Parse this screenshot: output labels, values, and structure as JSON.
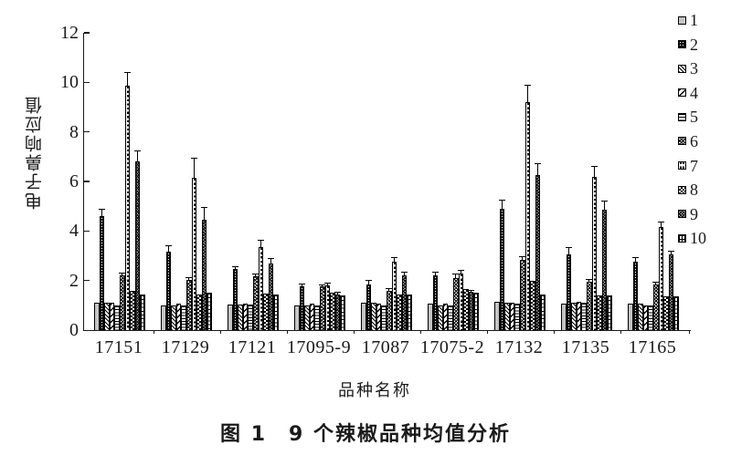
{
  "figure": {
    "caption": "图 1　9 个辣椒品种均值分析"
  },
  "colors": {
    "background": "#ffffff",
    "axis": "#1a1a1a",
    "text": "#1a1a1a",
    "bar_outline": "#000000",
    "light_gray_fill": "#c4c4c4"
  },
  "chart_data": {
    "type": "bar",
    "title": "",
    "xlabel": "品种名称",
    "ylabel": "电子鼻响应值",
    "ylim": [
      0,
      12
    ],
    "yticks": [
      0,
      2,
      4,
      6,
      8,
      10,
      12
    ],
    "grid": false,
    "legend_position": "right",
    "error_bars": true,
    "categories": [
      "17151",
      "17129",
      "17121",
      "17095-9",
      "17087",
      "17075-2",
      "17132",
      "17135",
      "17165"
    ],
    "series": [
      {
        "name": "1",
        "pattern": "light-gray",
        "values": [
          1.1,
          1.0,
          1.02,
          1.0,
          1.1,
          1.05,
          1.15,
          1.05,
          1.05
        ],
        "errors": [
          0,
          0,
          0,
          0,
          0,
          0,
          0,
          0,
          0
        ]
      },
      {
        "name": "2",
        "pattern": "black-fine-dots",
        "values": [
          4.6,
          3.15,
          2.45,
          1.75,
          1.85,
          2.2,
          4.9,
          3.05,
          2.75
        ],
        "errors": [
          0.26,
          0.24,
          0.1,
          0.08,
          0.13,
          0.12,
          0.33,
          0.25,
          0.15
        ]
      },
      {
        "name": "3",
        "pattern": "diagonal-hatch-fine",
        "values": [
          1.1,
          1.0,
          1.04,
          1.0,
          1.1,
          1.0,
          1.1,
          1.1,
          1.08
        ],
        "errors": [
          0,
          0,
          0,
          0,
          0,
          0,
          0,
          0,
          0
        ]
      },
      {
        "name": "4",
        "pattern": "diagonal-hatch-bold",
        "values": [
          1.1,
          1.08,
          1.08,
          1.05,
          1.08,
          1.05,
          1.1,
          1.15,
          1.0
        ],
        "errors": [
          0,
          0,
          0,
          0,
          0,
          0,
          0,
          0,
          0
        ]
      },
      {
        "name": "5",
        "pattern": "horizontal-lines",
        "values": [
          1.0,
          1.0,
          1.02,
          1.0,
          1.0,
          1.0,
          1.05,
          1.1,
          1.0
        ],
        "errors": [
          0,
          0,
          0,
          0,
          0,
          0,
          0,
          0,
          0
        ]
      },
      {
        "name": "6",
        "pattern": "dense-crosshatch",
        "values": [
          2.2,
          2.03,
          2.18,
          1.75,
          1.6,
          2.1,
          2.85,
          1.95,
          1.85
        ],
        "errors": [
          0.08,
          0.06,
          0.08,
          0.05,
          0.05,
          0.16,
          0.1,
          0.08,
          0.06
        ]
      },
      {
        "name": "7",
        "pattern": "horizontal-dash-rows",
        "values": [
          9.88,
          6.16,
          3.35,
          1.8,
          2.75,
          2.28,
          9.2,
          6.2,
          4.15
        ],
        "errors": [
          0.5,
          0.75,
          0.25,
          0.08,
          0.15,
          0.1,
          0.68,
          0.4,
          0.2
        ]
      },
      {
        "name": "8",
        "pattern": "checker-dots",
        "values": [
          1.6,
          1.44,
          1.47,
          1.5,
          1.45,
          1.65,
          2.0,
          1.4,
          1.35
        ],
        "errors": [
          0,
          0,
          0,
          0,
          0,
          0,
          0,
          0,
          0
        ]
      },
      {
        "name": "9",
        "pattern": "dark-diagonal-crosshatch",
        "values": [
          6.8,
          4.44,
          2.67,
          1.45,
          2.2,
          1.55,
          6.25,
          4.85,
          3.05
        ],
        "errors": [
          0.4,
          0.48,
          0.21,
          0.05,
          0.12,
          0.05,
          0.45,
          0.35,
          0.12
        ]
      },
      {
        "name": "10",
        "pattern": "vertical-line-grid",
        "values": [
          1.45,
          1.5,
          1.42,
          1.4,
          1.45,
          1.5,
          1.45,
          1.4,
          1.35
        ],
        "errors": [
          0,
          0,
          0,
          0,
          0,
          0,
          0,
          0,
          0
        ]
      }
    ]
  }
}
